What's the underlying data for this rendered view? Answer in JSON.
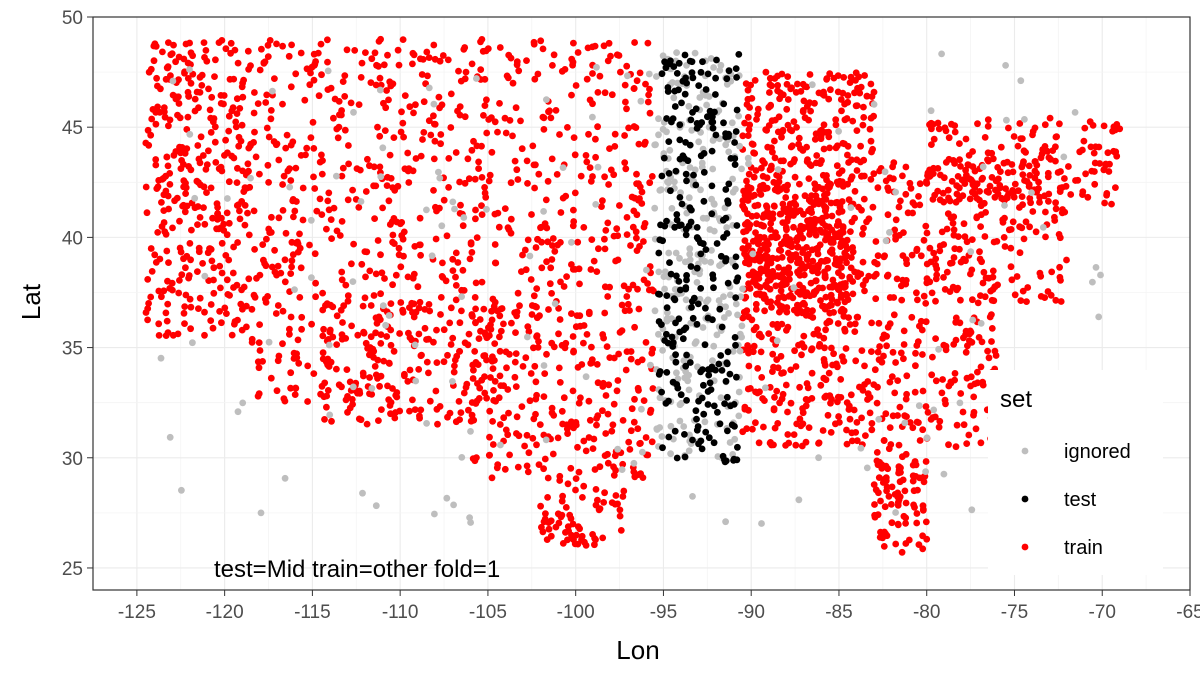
{
  "chart_data": {
    "type": "scatter",
    "title": "",
    "xlabel": "Lon",
    "ylabel": "Lat",
    "xlim": [
      -127.5,
      -65
    ],
    "ylim": [
      24,
      50
    ],
    "xticks": [
      -125,
      -120,
      -115,
      -110,
      -105,
      -100,
      -95,
      -90,
      -85,
      -80,
      -75,
      -70,
      -65
    ],
    "xtick_labels": [
      "-125",
      "-120",
      "-115",
      "-110",
      "-105",
      "-100",
      "-95",
      "-90",
      "-85",
      "-80",
      "-75",
      "-70",
      "-65"
    ],
    "yticks": [
      25,
      30,
      35,
      40,
      45,
      50
    ],
    "ytick_labels": [
      "25",
      "30",
      "35",
      "40",
      "45",
      "50"
    ],
    "grid": true,
    "annotation": "test=Mid train=other fold=1",
    "legend": {
      "title": "set",
      "placement": "right-inside-bottom",
      "entries": [
        {
          "label": "ignored",
          "color": "#bebebe"
        },
        {
          "label": "test",
          "color": "#000000"
        },
        {
          "label": "train",
          "color": "#ff0000"
        }
      ]
    },
    "series": [
      {
        "name": "train",
        "color": "#ff0000",
        "regions": [
          {
            "lon": [
              -124.5,
              -118.5
            ],
            "lat": [
              35.5,
              49
            ],
            "weight": 1.3
          },
          {
            "lon": [
              -118.5,
              -110.5
            ],
            "lat": [
              32.5,
              49
            ],
            "weight": 1.2
          },
          {
            "lon": [
              -114.5,
              -104.5
            ],
            "lat": [
              31.5,
              37
            ],
            "weight": 0.7
          },
          {
            "lon": [
              -110.5,
              -95.5
            ],
            "lat": [
              37,
              49
            ],
            "weight": 1.6
          },
          {
            "lon": [
              -106,
              -95.5
            ],
            "lat": [
              29,
              37
            ],
            "weight": 1.0
          },
          {
            "lon": [
              -102,
              -97
            ],
            "lat": [
              26,
              29
            ],
            "weight": 0.25
          },
          {
            "lon": [
              -90.5,
              -84.5
            ],
            "lat": [
              36.5,
              42.5
            ],
            "weight": 1.8
          },
          {
            "lon": [
              -90.5,
              -83
            ],
            "lat": [
              42.5,
              47.5
            ],
            "weight": 0.8
          },
          {
            "lon": [
              -90.5,
              -76
            ],
            "lat": [
              30.5,
              36.5
            ],
            "weight": 1.3
          },
          {
            "lon": [
              -84.5,
              -72
            ],
            "lat": [
              37,
              43.5
            ],
            "weight": 1.2
          },
          {
            "lon": [
              -80,
              -69
            ],
            "lat": [
              41.5,
              45.5
            ],
            "weight": 0.6
          },
          {
            "lon": [
              -83,
              -80
            ],
            "lat": [
              25.5,
              30.5
            ],
            "weight": 0.35
          }
        ]
      },
      {
        "name": "ignored",
        "color": "#bebebe",
        "regions": [
          {
            "lon": [
              -95.5,
              -90.5
            ],
            "lat": [
              30,
              48.5
            ],
            "weight": 1.0
          },
          {
            "lon": [
              -124,
              -70
            ],
            "lat": [
              27,
              48.5
            ],
            "weight": 0.6
          }
        ]
      },
      {
        "name": "test",
        "color": "#000000",
        "regions": [
          {
            "lon": [
              -95.3,
              -90.7
            ],
            "lat": [
              29.8,
              48.5
            ],
            "weight": 1.0
          }
        ]
      }
    ]
  }
}
